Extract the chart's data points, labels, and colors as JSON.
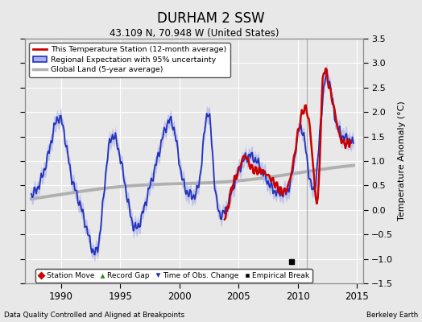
{
  "title": "DURHAM 2 SSW",
  "subtitle": "43.109 N, 70.948 W (United States)",
  "ylabel": "Temperature Anomaly (°C)",
  "xlabel_left": "Data Quality Controlled and Aligned at Breakpoints",
  "xlabel_right": "Berkeley Earth",
  "ylim": [
    -1.5,
    3.5
  ],
  "xlim": [
    1987.0,
    2015.5
  ],
  "xticks": [
    1990,
    1995,
    2000,
    2005,
    2010,
    2015
  ],
  "yticks": [
    -1.5,
    -1.0,
    -0.5,
    0.0,
    0.5,
    1.0,
    1.5,
    2.0,
    2.5,
    3.0,
    3.5
  ],
  "fig_bg_color": "#e8e8e8",
  "plot_bg_color": "#e8e8e8",
  "grid_color": "#ffffff",
  "station_color": "#cc0000",
  "regional_color": "#2233bb",
  "regional_fill_color": "#aab0e8",
  "global_color": "#b0b0b0",
  "vertical_line_x": 2010.75,
  "empirical_break_x": 2009.5,
  "empirical_break_y": -1.05,
  "legend1_labels": [
    "This Temperature Station (12-month average)",
    "Regional Expectation with 95% uncertainty",
    "Global Land (5-year average)"
  ],
  "legend2_labels": [
    "Station Move",
    "Record Gap",
    "Time of Obs. Change",
    "Empirical Break"
  ]
}
